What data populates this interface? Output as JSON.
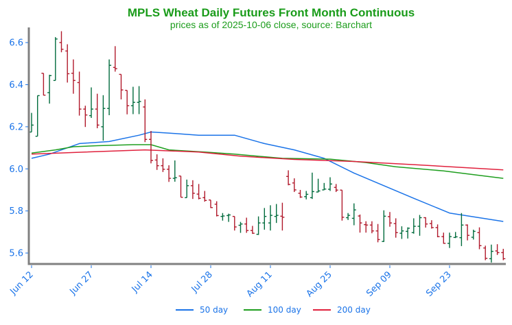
{
  "chart_data": {
    "type": "ohlc",
    "title": "MPLS Wheat Daily Futures Front Month Continuous",
    "subtitle": "prices as of 2025-10-06 close, source: Barchart",
    "xlabel": "",
    "ylabel": "",
    "ylim": [
      5.548,
      6.672
    ],
    "yticks": [
      "5.6",
      "5.8",
      "6.0",
      "6.2",
      "6.4",
      "6.6"
    ],
    "ytick_values": [
      5.6,
      5.8,
      6.0,
      6.2,
      6.4,
      6.6
    ],
    "xticks": [
      "Jun 12",
      "Jun 27",
      "Jul 14",
      "Jul 28",
      "Aug 11",
      "Aug 25",
      "Sep 09",
      "Sep 23"
    ],
    "xtick_dates": [
      "2025-06-12",
      "2025-06-27",
      "2025-07-14",
      "2025-07-28",
      "2025-08-11",
      "2025-08-25",
      "2025-09-09",
      "2025-09-23"
    ],
    "grid": false,
    "legend_position": "bottom",
    "colors": {
      "up": "#006b3c",
      "down": "#b0182a",
      "ma50": "#1a73e8",
      "ma100": "#1e9e1e",
      "ma200": "#e0203c",
      "title": "#1a9c1a",
      "ticks": "#1a73e8",
      "axis": "#808080"
    },
    "dates": [
      "2025-06-12",
      "2025-06-13",
      "2025-06-16",
      "2025-06-17",
      "2025-06-18",
      "2025-06-20",
      "2025-06-23",
      "2025-06-24",
      "2025-06-25",
      "2025-06-26",
      "2025-06-27",
      "2025-06-30",
      "2025-07-01",
      "2025-07-02",
      "2025-07-03",
      "2025-07-07",
      "2025-07-08",
      "2025-07-09",
      "2025-07-10",
      "2025-07-11",
      "2025-07-14",
      "2025-07-15",
      "2025-07-16",
      "2025-07-17",
      "2025-07-18",
      "2025-07-21",
      "2025-07-22",
      "2025-07-23",
      "2025-07-24",
      "2025-07-25",
      "2025-07-28",
      "2025-07-29",
      "2025-07-30",
      "2025-07-31",
      "2025-08-01",
      "2025-08-04",
      "2025-08-05",
      "2025-08-06",
      "2025-08-07",
      "2025-08-08",
      "2025-08-11",
      "2025-08-12",
      "2025-08-13",
      "2025-08-14",
      "2025-08-15",
      "2025-08-18",
      "2025-08-19",
      "2025-08-20",
      "2025-08-21",
      "2025-08-22",
      "2025-08-25",
      "2025-08-26",
      "2025-08-27",
      "2025-08-28",
      "2025-08-29",
      "2025-09-02",
      "2025-09-03",
      "2025-09-04",
      "2025-09-05",
      "2025-09-08",
      "2025-09-09",
      "2025-09-10",
      "2025-09-11",
      "2025-09-12",
      "2025-09-15",
      "2025-09-16",
      "2025-09-17",
      "2025-09-18",
      "2025-09-19",
      "2025-09-22",
      "2025-09-23",
      "2025-09-24",
      "2025-09-25",
      "2025-09-26",
      "2025-09-29",
      "2025-09-30",
      "2025-10-01",
      "2025-10-02",
      "2025-10-03",
      "2025-10-06"
    ],
    "ohlc": [
      [
        6.175,
        6.266,
        6.175,
        6.208
      ],
      [
        6.155,
        6.348,
        6.155,
        6.348
      ],
      [
        6.454,
        6.454,
        6.349,
        6.35
      ],
      [
        6.362,
        6.447,
        6.31,
        6.443
      ],
      [
        6.42,
        6.626,
        6.42,
        6.617
      ],
      [
        6.6,
        6.654,
        6.554,
        6.568
      ],
      [
        6.56,
        6.592,
        6.41,
        6.452
      ],
      [
        6.454,
        6.52,
        6.357,
        6.42
      ],
      [
        6.41,
        6.462,
        6.253,
        6.284
      ],
      [
        6.284,
        6.3,
        6.199,
        6.256
      ],
      [
        6.253,
        6.387,
        6.242,
        6.284
      ],
      [
        6.284,
        6.357,
        6.193,
        6.208
      ],
      [
        6.2,
        6.35,
        6.134,
        6.287
      ],
      [
        6.287,
        6.52,
        6.255,
        6.492
      ],
      [
        6.482,
        6.583,
        6.462,
        6.476
      ],
      [
        6.449,
        6.449,
        6.33,
        6.375
      ],
      [
        6.373,
        6.373,
        6.259,
        6.3
      ],
      [
        6.3,
        6.39,
        6.26,
        6.316
      ],
      [
        6.316,
        6.393,
        6.26,
        6.32
      ],
      [
        6.294,
        6.33,
        6.127,
        6.14
      ],
      [
        6.14,
        6.18,
        6.026,
        6.04
      ],
      [
        6.042,
        6.069,
        5.995,
        6.015
      ],
      [
        6.015,
        6.05,
        5.985,
        5.998
      ],
      [
        5.998,
        6.017,
        5.938,
        5.955
      ],
      [
        5.955,
        6.04,
        5.939,
        5.958
      ],
      [
        5.966,
        5.966,
        5.865,
        5.865
      ],
      [
        5.863,
        5.949,
        5.863,
        5.92
      ],
      [
        5.92,
        5.946,
        5.857,
        5.884
      ],
      [
        5.88,
        5.928,
        5.855,
        5.86
      ],
      [
        5.863,
        5.895,
        5.844,
        5.85
      ],
      [
        5.852,
        5.852,
        5.814,
        5.816
      ],
      [
        5.832,
        5.846,
        5.774,
        5.778
      ],
      [
        5.774,
        5.79,
        5.754,
        5.776
      ],
      [
        5.778,
        5.787,
        5.748,
        5.781
      ],
      [
        5.774,
        5.774,
        5.707,
        5.724
      ],
      [
        5.732,
        5.748,
        5.696,
        5.738
      ],
      [
        5.738,
        5.768,
        5.696,
        5.707
      ],
      [
        5.707,
        5.729,
        5.691,
        5.694
      ],
      [
        5.689,
        5.774,
        5.686,
        5.743
      ],
      [
        5.743,
        5.814,
        5.711,
        5.774
      ],
      [
        5.743,
        5.827,
        5.707,
        5.779
      ],
      [
        5.774,
        5.833,
        5.743,
        5.779
      ],
      [
        5.775,
        5.839,
        5.707,
        5.77
      ],
      [
        5.964,
        5.993,
        5.922,
        5.926
      ],
      [
        5.933,
        5.955,
        5.89,
        5.9
      ],
      [
        5.884,
        5.9,
        5.862,
        5.866
      ],
      [
        5.868,
        5.895,
        5.855,
        5.879
      ],
      [
        5.863,
        5.982,
        5.857,
        5.892
      ],
      [
        5.89,
        5.953,
        5.888,
        5.895
      ],
      [
        5.9,
        5.933,
        5.899,
        5.904
      ],
      [
        5.903,
        5.96,
        5.895,
        5.928
      ],
      [
        5.912,
        5.928,
        5.89,
        5.899
      ],
      [
        5.899,
        5.899,
        5.754,
        5.77
      ],
      [
        5.768,
        5.79,
        5.757,
        5.779
      ],
      [
        5.765,
        5.836,
        5.732,
        5.805
      ],
      [
        5.776,
        5.783,
        5.697,
        5.743
      ],
      [
        5.735,
        5.751,
        5.697,
        5.733
      ],
      [
        5.733,
        5.751,
        5.694,
        5.705
      ],
      [
        5.705,
        5.738,
        5.651,
        5.664
      ],
      [
        5.655,
        5.803,
        5.653,
        5.775
      ],
      [
        5.773,
        5.795,
        5.725,
        5.743
      ],
      [
        5.74,
        5.765,
        5.673,
        5.697
      ],
      [
        5.694,
        5.727,
        5.667,
        5.705
      ],
      [
        5.703,
        5.722,
        5.669,
        5.718
      ],
      [
        5.697,
        5.765,
        5.692,
        5.727
      ],
      [
        5.727,
        5.781,
        5.682,
        5.768
      ],
      [
        5.768,
        5.77,
        5.721,
        5.738
      ],
      [
        5.74,
        5.756,
        5.716,
        5.721
      ],
      [
        5.721,
        5.736,
        5.675,
        5.678
      ],
      [
        5.678,
        5.697,
        5.644,
        5.646
      ],
      [
        5.646,
        5.697,
        5.624,
        5.678
      ],
      [
        5.674,
        5.7,
        5.671,
        5.677
      ],
      [
        5.673,
        5.79,
        5.633,
        5.733
      ],
      [
        5.733,
        5.736,
        5.66,
        5.684
      ],
      [
        5.675,
        5.711,
        5.664,
        5.703
      ],
      [
        5.697,
        5.722,
        5.618,
        5.635
      ],
      [
        5.624,
        5.635,
        5.566,
        5.575
      ],
      [
        5.573,
        5.64,
        5.555,
        5.608
      ],
      [
        5.61,
        5.642,
        5.591,
        5.602
      ],
      [
        5.602,
        5.62,
        5.566,
        5.573
      ]
    ],
    "series": [
      {
        "name": "50 day",
        "color": "#1a73e8",
        "points": [
          [
            "2025-06-12",
            6.05
          ],
          [
            "2025-06-17",
            6.07
          ],
          [
            "2025-06-23",
            6.1
          ],
          [
            "2025-06-25",
            6.12
          ],
          [
            "2025-07-02",
            6.13
          ],
          [
            "2025-07-10",
            6.16
          ],
          [
            "2025-07-14",
            6.175
          ],
          [
            "2025-07-17",
            6.17
          ],
          [
            "2025-07-24",
            6.16
          ],
          [
            "2025-08-01",
            6.16
          ],
          [
            "2025-08-08",
            6.12
          ],
          [
            "2025-08-15",
            6.09
          ],
          [
            "2025-08-22",
            6.05
          ],
          [
            "2025-08-29",
            5.98
          ],
          [
            "2025-09-08",
            5.92
          ],
          [
            "2025-09-15",
            5.86
          ],
          [
            "2025-09-23",
            5.79
          ],
          [
            "2025-10-06",
            5.75
          ]
        ]
      },
      {
        "name": "100 day",
        "color": "#1e9e1e",
        "points": [
          [
            "2025-06-12",
            6.075
          ],
          [
            "2025-06-18",
            6.09
          ],
          [
            "2025-06-24",
            6.105
          ],
          [
            "2025-06-30",
            6.11
          ],
          [
            "2025-07-09",
            6.115
          ],
          [
            "2025-07-14",
            6.115
          ],
          [
            "2025-07-17",
            6.09
          ],
          [
            "2025-07-25",
            6.08
          ],
          [
            "2025-08-01",
            6.07
          ],
          [
            "2025-08-13",
            6.05
          ],
          [
            "2025-08-25",
            6.046
          ],
          [
            "2025-09-03",
            6.03
          ],
          [
            "2025-09-10",
            6.01
          ],
          [
            "2025-09-22",
            5.99
          ],
          [
            "2025-10-06",
            5.955
          ]
        ]
      },
      {
        "name": "200 day",
        "color": "#e0203c",
        "points": [
          [
            "2025-06-12",
            6.07
          ],
          [
            "2025-06-26",
            6.08
          ],
          [
            "2025-07-11",
            6.09
          ],
          [
            "2025-07-24",
            6.08
          ],
          [
            "2025-08-04",
            6.06
          ],
          [
            "2025-08-15",
            6.045
          ],
          [
            "2025-08-29",
            6.035
          ],
          [
            "2025-09-15",
            6.02
          ],
          [
            "2025-10-06",
            5.995
          ]
        ]
      }
    ]
  }
}
